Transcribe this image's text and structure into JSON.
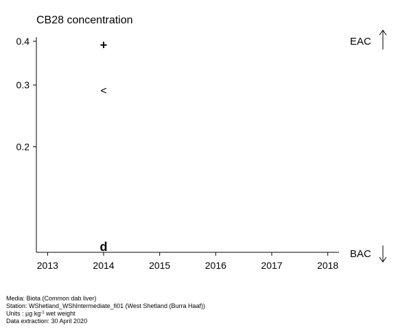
{
  "chart_data": {
    "type": "scatter",
    "title": "CB28 concentration",
    "xlabel": "",
    "ylabel": "",
    "xlim": [
      2012.8,
      2018.2
    ],
    "ylim": [
      0.1,
      0.4
    ],
    "y_scale": "log",
    "x_ticks": [
      "2013",
      "2014",
      "2015",
      "2016",
      "2017",
      "2018"
    ],
    "y_ticks": [
      "0.2",
      "0.3",
      "0.4"
    ],
    "points": [
      {
        "x": 2014,
        "y": 0.39,
        "marker": "+"
      },
      {
        "x": 2014,
        "y": 0.29,
        "marker": "<"
      },
      {
        "x": 2014,
        "y": 0.1,
        "marker": "d"
      }
    ],
    "right_labels": [
      {
        "label": "EAC",
        "arrow": "up"
      },
      {
        "label": "BAC",
        "arrow": "down"
      }
    ],
    "grid": false
  },
  "footer": {
    "media": "Media: Biota (Common dab liver)",
    "station": "Station: WShetland_WShIntermediate_fi01 (West Shetland (Burra Haaf))",
    "units_prefix": "Units : µg kg",
    "units_exp": "-1",
    "units_suffix": " wet weight",
    "extraction": "Data extraction: 30 April 2020"
  }
}
